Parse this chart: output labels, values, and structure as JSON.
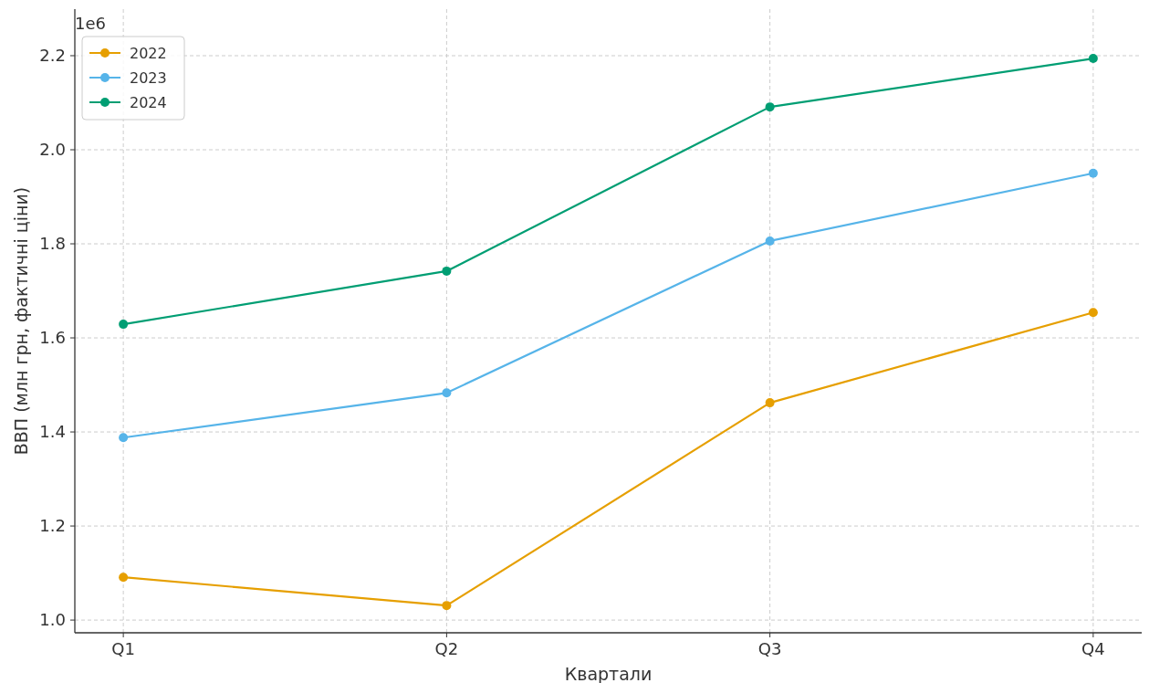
{
  "chart_data": {
    "type": "line",
    "xlabel": "Квартали",
    "ylabel": "ВВП (млн грн, фактичні ціни)",
    "annotations": [
      "1e6"
    ],
    "categories": [
      "Q1",
      "Q2",
      "Q3",
      "Q4"
    ],
    "series": [
      {
        "name": "2022",
        "color": "#e69f00",
        "values": [
          1.091,
          1.031,
          1.462,
          1.654
        ]
      },
      {
        "name": "2023",
        "color": "#56b4e9",
        "values": [
          1.388,
          1.483,
          1.806,
          1.95
        ]
      },
      {
        "name": "2024",
        "color": "#009e73",
        "values": [
          1.629,
          1.742,
          2.091,
          2.194
        ]
      }
    ],
    "ylim": [
      0.973,
      2.299
    ],
    "yticks": [
      {
        "value": 1.0,
        "label": "1.0"
      },
      1.2,
      1.4,
      1.6,
      1.8,
      {
        "value": 2.0,
        "label": "2.0"
      },
      2.2
    ],
    "grid": true,
    "legend": "top left",
    "marker": "circle",
    "line_style": "solid"
  }
}
